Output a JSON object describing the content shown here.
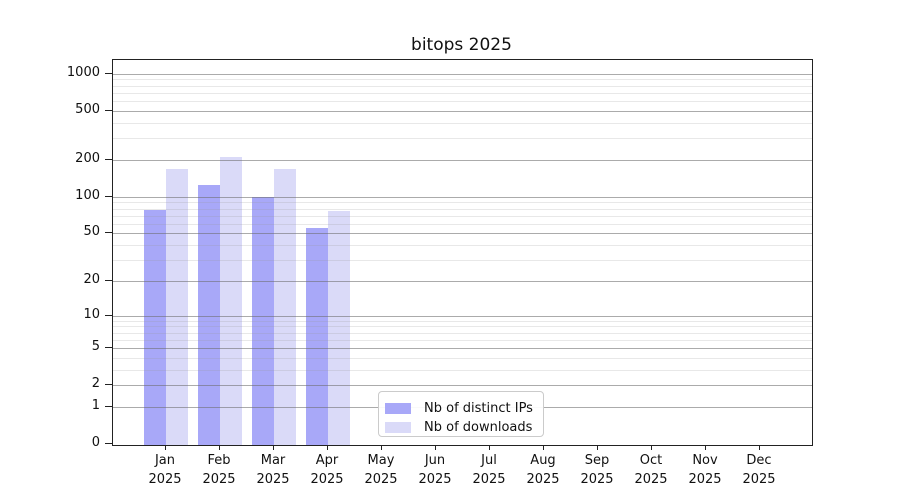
{
  "title": "bitops 2025",
  "colors": {
    "ips_bar": "#a8a8f8",
    "downloads_bar": "#dadaf8",
    "major_grid": "#b0b0b0",
    "minor_grid": "#e4e4e4",
    "axis_frame": "#222222",
    "legend_border": "#cbcbcb",
    "text": "#111111"
  },
  "chart_data": {
    "type": "bar",
    "title": "bitops 2025",
    "categories": [
      "Jan 2025",
      "Feb 2025",
      "Mar 2025",
      "Apr 2025",
      "May 2025",
      "Jun 2025",
      "Jul 2025",
      "Aug 2025",
      "Sep 2025",
      "Oct 2025",
      "Nov 2025",
      "Dec 2025"
    ],
    "series": [
      {
        "name": "Nb of distinct IPs",
        "color": "#a8a8f8",
        "values": [
          78,
          125,
          99,
          55,
          0,
          0,
          0,
          0,
          0,
          0,
          0,
          0
        ]
      },
      {
        "name": "Nb of downloads",
        "color": "#dadaf8",
        "values": [
          168,
          212,
          168,
          76,
          0,
          0,
          0,
          0,
          0,
          0,
          0,
          0
        ]
      }
    ],
    "xlabel": "",
    "ylabel": "",
    "yscale": "log1p",
    "yticks": [
      0,
      1,
      2,
      5,
      10,
      20,
      50,
      100,
      200,
      500,
      1000
    ],
    "minor_yticks": [
      3,
      4,
      6,
      7,
      8,
      9,
      30,
      40,
      60,
      70,
      80,
      90,
      300,
      400,
      600,
      700,
      800,
      900
    ],
    "ylim": [
      0,
      1290
    ],
    "grid": "horizontal",
    "legend_position": "inside-bottom-center"
  },
  "legend": {
    "items": [
      {
        "label": "Nb of distinct IPs",
        "color": "#a8a8f8"
      },
      {
        "label": "Nb of downloads",
        "color": "#dadaf8"
      }
    ]
  }
}
